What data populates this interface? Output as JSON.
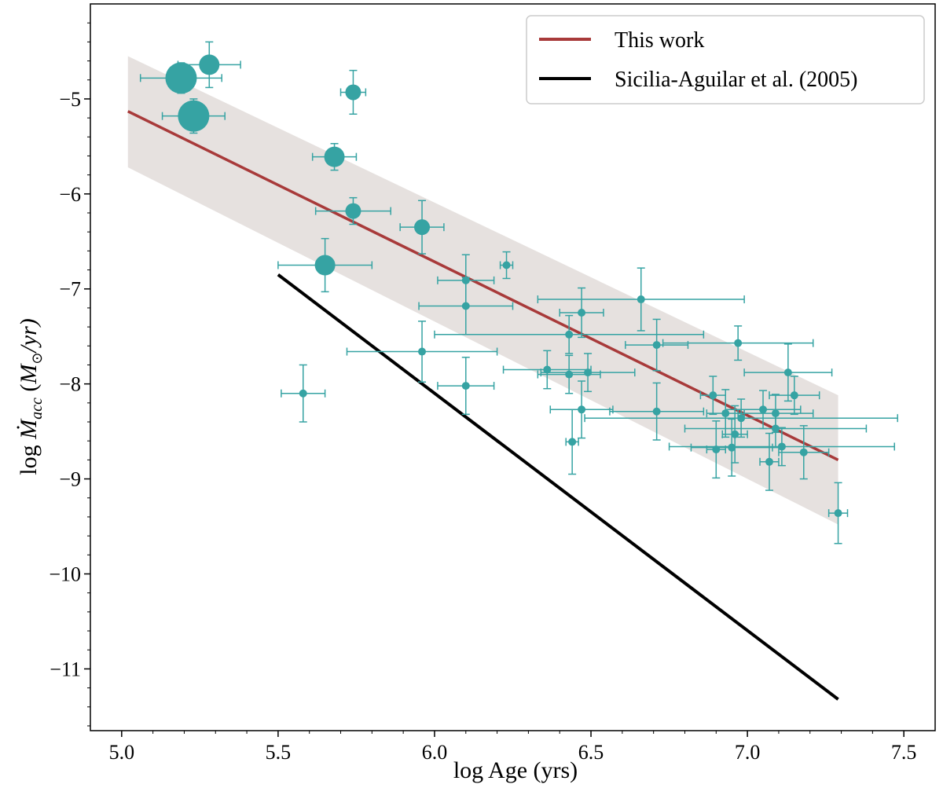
{
  "chart_data": {
    "type": "scatter",
    "xlabel": "log Age (yrs)",
    "ylabel_parts": {
      "pre": "log ",
      "sym": "Ṁ",
      "sub": "acc",
      "unit_open": " (",
      "M": "M",
      "sun": "⊙",
      "unit_rest": "/yr)"
    },
    "xlim": [
      4.9,
      7.6
    ],
    "ylim": [
      -11.65,
      -4.0
    ],
    "xticks": [
      5.0,
      5.5,
      6.0,
      6.5,
      7.0,
      7.5
    ],
    "xtick_labels": [
      "5.0",
      "5.5",
      "6.0",
      "6.5",
      "7.0",
      "7.5"
    ],
    "yticks": [
      -5,
      -6,
      -7,
      -8,
      -9,
      -10,
      -11
    ],
    "ytick_labels": [
      "−5",
      "−6",
      "−7",
      "−8",
      "−9",
      "−10",
      "−11"
    ],
    "legend": {
      "position": "top-right",
      "entries": [
        {
          "label": "This work",
          "color": "#a83a3a"
        },
        {
          "label": "Sicilia-Aguilar et al. (2005)",
          "color": "#000000"
        }
      ]
    },
    "series": [
      {
        "name": "This work",
        "kind": "line",
        "color": "#a83a3a",
        "x": [
          5.02,
          7.29
        ],
        "y": [
          -5.13,
          -8.8
        ]
      },
      {
        "name": "Sicilia-Aguilar et al. (2005)",
        "kind": "line",
        "color": "#000000",
        "x": [
          5.5,
          7.29
        ],
        "y": [
          -6.85,
          -11.32
        ]
      }
    ],
    "band": {
      "color": "#e6e1df",
      "x": [
        5.02,
        7.29
      ],
      "upper": [
        -4.55,
        -8.12
      ],
      "lower": [
        -5.72,
        -9.48
      ]
    },
    "points_color": "#36a3a3",
    "points": [
      {
        "x": 5.19,
        "y": -4.78,
        "xerr": 0.13,
        "yerr": 0.16,
        "size": "xl"
      },
      {
        "x": 5.28,
        "y": -4.64,
        "xerr": 0.1,
        "yerr": 0.24,
        "size": "l"
      },
      {
        "x": 5.23,
        "y": -5.18,
        "xerr": 0.1,
        "yerr": 0.18,
        "size": "xl"
      },
      {
        "x": 5.74,
        "y": -4.93,
        "xerr": 0.04,
        "yerr": 0.23,
        "size": "m"
      },
      {
        "x": 5.68,
        "y": -5.61,
        "xerr": 0.07,
        "yerr": 0.14,
        "size": "l"
      },
      {
        "x": 5.74,
        "y": -6.18,
        "xerr": 0.12,
        "yerr": 0.14,
        "size": "m"
      },
      {
        "x": 5.65,
        "y": -6.75,
        "xerr": 0.15,
        "yerr": 0.28,
        "size": "l"
      },
      {
        "x": 5.96,
        "y": -6.35,
        "xerr": 0.07,
        "yerr": 0.28,
        "size": "m"
      },
      {
        "x": 5.58,
        "y": -8.1,
        "xerr": 0.07,
        "yerr": 0.3,
        "size": "s"
      },
      {
        "x": 6.23,
        "y": -6.75,
        "xerr": 0.02,
        "yerr": 0.14,
        "size": "s"
      },
      {
        "x": 6.1,
        "y": -6.91,
        "xerr": 0.09,
        "yerr": 0.27,
        "size": "s"
      },
      {
        "x": 6.1,
        "y": -7.18,
        "xerr": 0.15,
        "yerr": 0.3,
        "size": "s"
      },
      {
        "x": 5.96,
        "y": -7.66,
        "xerr": 0.24,
        "yerr": 0.32,
        "size": "s"
      },
      {
        "x": 6.1,
        "y": -8.02,
        "xerr": 0.09,
        "yerr": 0.3,
        "size": "s"
      },
      {
        "x": 6.66,
        "y": -7.11,
        "xerr": 0.33,
        "yerr": 0.33,
        "size": "s"
      },
      {
        "x": 6.47,
        "y": -7.25,
        "xerr": 0.07,
        "yerr": 0.26,
        "size": "s"
      },
      {
        "x": 6.43,
        "y": -7.48,
        "xerr": 0.43,
        "yerr": 0.2,
        "size": "s"
      },
      {
        "x": 6.71,
        "y": -7.59,
        "xerr": 0.1,
        "yerr": 0.27,
        "size": "s"
      },
      {
        "x": 6.97,
        "y": -7.57,
        "xerr": 0.24,
        "yerr": 0.18,
        "size": "s"
      },
      {
        "x": 6.36,
        "y": -7.85,
        "xerr": 0.14,
        "yerr": 0.2,
        "size": "s"
      },
      {
        "x": 6.43,
        "y": -7.9,
        "xerr": 0.1,
        "yerr": 0.2,
        "size": "s"
      },
      {
        "x": 6.49,
        "y": -7.88,
        "xerr": 0.15,
        "yerr": 0.2,
        "size": "s"
      },
      {
        "x": 7.13,
        "y": -7.88,
        "xerr": 0.14,
        "yerr": 0.3,
        "size": "s"
      },
      {
        "x": 6.89,
        "y": -8.12,
        "xerr": 0.04,
        "yerr": 0.2,
        "size": "s"
      },
      {
        "x": 7.15,
        "y": -8.12,
        "xerr": 0.08,
        "yerr": 0.2,
        "size": "s"
      },
      {
        "x": 6.47,
        "y": -8.27,
        "xerr": 0.1,
        "yerr": 0.3,
        "size": "s"
      },
      {
        "x": 6.71,
        "y": -8.29,
        "xerr": 0.15,
        "yerr": 0.3,
        "size": "s"
      },
      {
        "x": 6.93,
        "y": -8.31,
        "xerr": 0.06,
        "yerr": 0.25,
        "size": "s"
      },
      {
        "x": 7.05,
        "y": -8.27,
        "xerr": 0.12,
        "yerr": 0.2,
        "size": "s"
      },
      {
        "x": 7.09,
        "y": -8.31,
        "xerr": 0.12,
        "yerr": 0.2,
        "size": "s"
      },
      {
        "x": 6.98,
        "y": -8.36,
        "xerr": 0.5,
        "yerr": 0.2,
        "size": "s"
      },
      {
        "x": 7.09,
        "y": -8.47,
        "xerr": 0.29,
        "yerr": 0.2,
        "size": "s"
      },
      {
        "x": 6.96,
        "y": -8.53,
        "xerr": 0.04,
        "yerr": 0.3,
        "size": "s"
      },
      {
        "x": 6.44,
        "y": -8.61,
        "xerr": 0.02,
        "yerr": 0.34,
        "size": "s"
      },
      {
        "x": 6.9,
        "y": -8.69,
        "xerr": 0.03,
        "yerr": 0.3,
        "size": "s"
      },
      {
        "x": 6.95,
        "y": -8.67,
        "xerr": 0.13,
        "yerr": 0.3,
        "size": "s"
      },
      {
        "x": 7.11,
        "y": -8.66,
        "xerr": 0.36,
        "yerr": 0.2,
        "size": "s"
      },
      {
        "x": 7.18,
        "y": -8.72,
        "xerr": 0.08,
        "yerr": 0.28,
        "size": "s"
      },
      {
        "x": 7.07,
        "y": -8.82,
        "xerr": 0.03,
        "yerr": 0.3,
        "size": "s"
      },
      {
        "x": 7.29,
        "y": -9.36,
        "xerr": 0.03,
        "yerr": 0.32,
        "size": "s"
      }
    ]
  }
}
